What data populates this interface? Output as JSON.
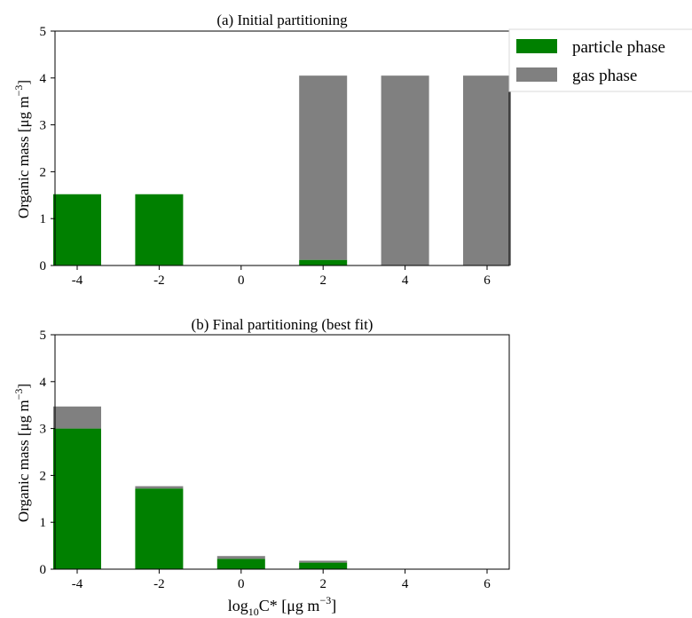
{
  "chart_data": [
    {
      "type": "bar",
      "stacked": true,
      "title": "(a) Initial partitioning",
      "categories": [
        "-4",
        "-2",
        "0",
        "2",
        "4",
        "6"
      ],
      "ylabel": "Organic mass [μg m⁻³]",
      "xlabel": "",
      "ylim": [
        0,
        5
      ],
      "yticks": [
        "0",
        "1",
        "2",
        "3",
        "4",
        "5"
      ],
      "series": [
        {
          "name": "particle phase",
          "color": "#008000",
          "values": [
            1.52,
            1.52,
            0,
            0.12,
            0,
            0
          ]
        },
        {
          "name": "gas phase",
          "color": "#808080",
          "values": [
            0,
            0,
            0,
            3.93,
            4.05,
            4.05
          ]
        }
      ],
      "grid": false,
      "legend": "top-right"
    },
    {
      "type": "bar",
      "stacked": true,
      "title": "(b) Final partitioning (best fit)",
      "categories": [
        "-4",
        "-2",
        "0",
        "2",
        "4",
        "6"
      ],
      "ylabel": "Organic mass [μg m⁻³]",
      "xlabel": "log₁₀C* [μg m⁻³]",
      "ylim": [
        0,
        5
      ],
      "yticks": [
        "0",
        "1",
        "2",
        "3",
        "4",
        "5"
      ],
      "series": [
        {
          "name": "particle phase",
          "color": "#008000",
          "values": [
            3.0,
            1.72,
            0.22,
            0.14,
            0,
            0
          ]
        },
        {
          "name": "gas phase",
          "color": "#808080",
          "values": [
            0.47,
            0.05,
            0.06,
            0.04,
            0,
            0
          ]
        }
      ],
      "grid": false
    }
  ],
  "legend": {
    "items": [
      {
        "label": "particle phase",
        "color": "#008000"
      },
      {
        "label": "gas phase",
        "color": "#808080"
      }
    ]
  }
}
